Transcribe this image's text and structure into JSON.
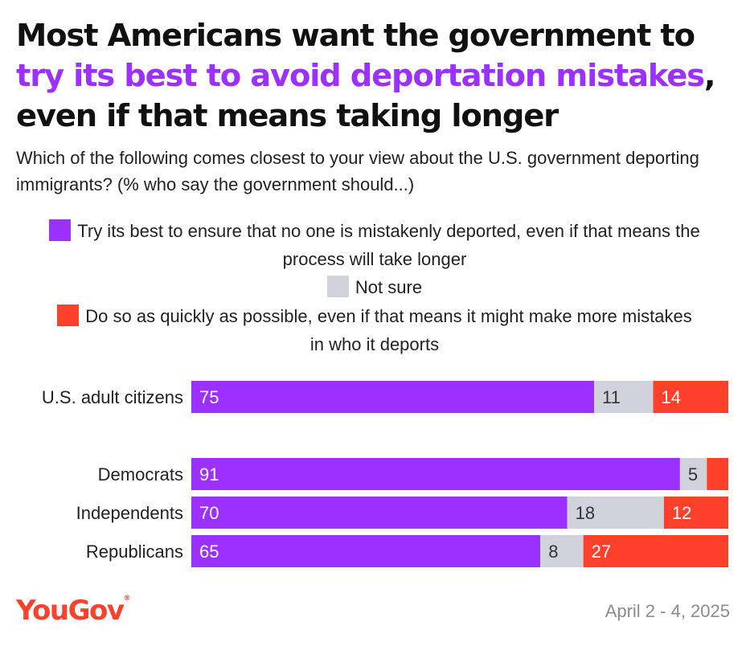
{
  "title": {
    "line1": "Most Americans want the government to",
    "highlight": "try its best to avoid deportation mistakes",
    "after_highlight": ",",
    "line3": "even if that means taking longer"
  },
  "subtitle": "Which of the following comes closest to your view about the U.S. government deporting immigrants? (% who say the government should...)",
  "legend": [
    {
      "label": "Try its best to ensure that no one is mistakenly deported, even if that means the process will take longer",
      "color": "#9b30ff"
    },
    {
      "label": "Not sure",
      "color": "#d1d3dc"
    },
    {
      "label": "Do so as quickly as possible, even if that means it might make more mistakes in who it deports",
      "color": "#ff412c"
    }
  ],
  "chart_data": {
    "type": "bar",
    "orientation": "horizontal-stacked-100",
    "categories": [
      "U.S. adult citizens",
      "Democrats",
      "Independents",
      "Republicans"
    ],
    "series": [
      {
        "name": "Try its best to ensure that no one is mistakenly deported, even if that means the process will take longer",
        "color": "#9b30ff",
        "values": [
          75,
          91,
          70,
          65
        ]
      },
      {
        "name": "Not sure",
        "color": "#d1d3dc",
        "values": [
          11,
          5,
          18,
          8
        ]
      },
      {
        "name": "Do so as quickly as possible, even if that means it might make more mistakes in who it deports",
        "color": "#ff412c",
        "values": [
          14,
          4,
          12,
          27
        ]
      }
    ],
    "data_labels": [
      [
        "75",
        "11",
        "14"
      ],
      [
        "91",
        "5",
        ""
      ],
      [
        "70",
        "18",
        "12"
      ],
      [
        "65",
        "8",
        "27"
      ]
    ],
    "xlim": [
      0,
      100
    ],
    "legend_position": "top"
  },
  "footer": {
    "brand": "YouGov",
    "date": "April 2 - 4, 2025"
  }
}
